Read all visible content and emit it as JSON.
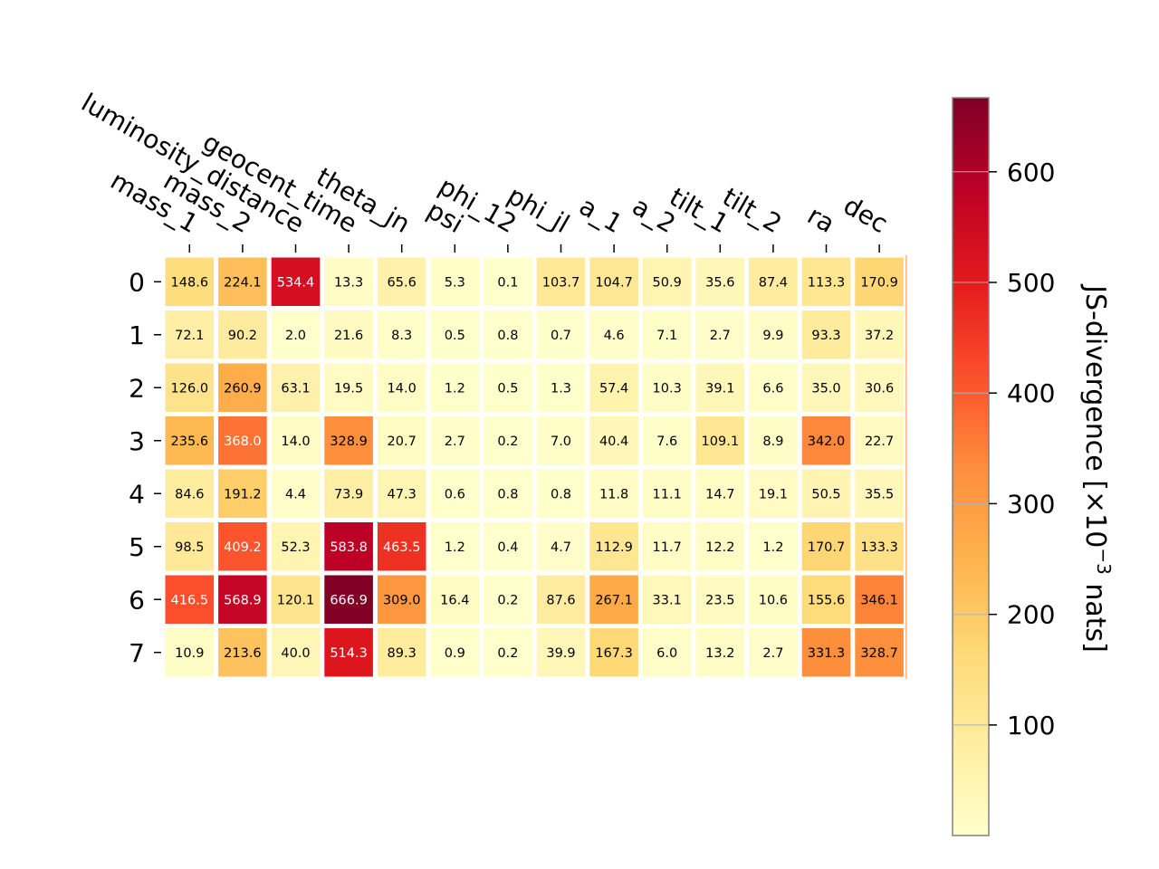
{
  "chart_data": {
    "type": "heatmap",
    "columns": [
      "mass_1",
      "mass_2",
      "luminosity_distance",
      "geocent_time",
      "theta_jn",
      "psi",
      "phi_12",
      "phi_jl",
      "a_1",
      "a_2",
      "tilt_1",
      "tilt_2",
      "ra",
      "dec"
    ],
    "rows": [
      "0",
      "1",
      "2",
      "3",
      "4",
      "5",
      "6",
      "7"
    ],
    "values": [
      [
        148.6,
        224.1,
        534.4,
        13.3,
        65.6,
        5.3,
        0.1,
        103.7,
        104.7,
        50.9,
        35.6,
        87.4,
        113.3,
        170.9
      ],
      [
        72.1,
        90.2,
        2.0,
        21.6,
        8.3,
        0.5,
        0.8,
        0.7,
        4.6,
        7.1,
        2.7,
        9.9,
        93.3,
        37.2
      ],
      [
        126.0,
        260.9,
        63.1,
        19.5,
        14.0,
        1.2,
        0.5,
        1.3,
        57.4,
        10.3,
        39.1,
        6.6,
        35.0,
        30.6
      ],
      [
        235.6,
        368.0,
        14.0,
        328.9,
        20.7,
        2.7,
        0.2,
        7.0,
        40.4,
        7.6,
        109.1,
        8.9,
        342.0,
        22.7
      ],
      [
        84.6,
        191.2,
        4.4,
        73.9,
        47.3,
        0.6,
        0.8,
        0.8,
        11.8,
        11.1,
        14.7,
        19.1,
        50.5,
        35.5
      ],
      [
        98.5,
        409.2,
        52.3,
        583.8,
        463.5,
        1.2,
        0.4,
        4.7,
        112.9,
        11.7,
        12.2,
        1.2,
        170.7,
        133.3
      ],
      [
        416.5,
        568.9,
        120.1,
        666.9,
        309.0,
        16.4,
        0.2,
        87.6,
        267.1,
        33.1,
        23.5,
        10.6,
        155.6,
        346.1
      ],
      [
        10.9,
        213.6,
        40.0,
        514.3,
        89.3,
        0.9,
        0.2,
        39.9,
        167.3,
        6.0,
        13.2,
        2.7,
        331.3,
        328.7
      ]
    ],
    "colorbar": {
      "label": "JS-divergence [×10",
      "label_exponent": "−3",
      "label_suffix": " nats]",
      "ticks": [
        "100",
        "200",
        "300",
        "400",
        "500",
        "600"
      ],
      "tick_values": [
        100,
        200,
        300,
        400,
        500,
        600
      ],
      "vmin": 0.1,
      "vmax": 666.9,
      "colormap": "YlOrRd"
    }
  }
}
